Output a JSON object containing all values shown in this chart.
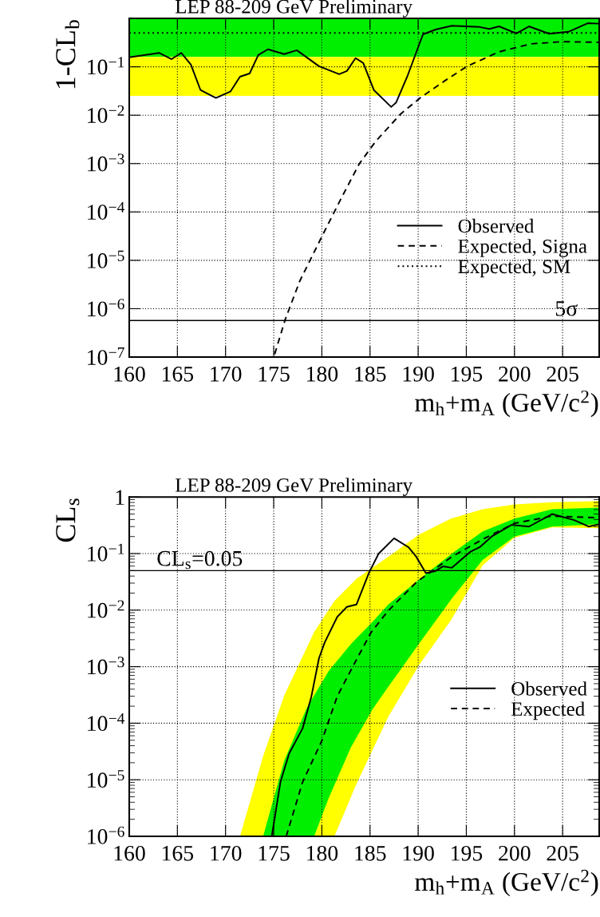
{
  "chart_data": [
    {
      "type": "line",
      "title": "LEP 88-209 GeV Preliminary",
      "xlabel": "m$_{h}$+m$_{A}$ (GeV/c$^{2}$)",
      "ylabel": "1-CL$_{b}$",
      "log": "y",
      "xlim": [
        160,
        208.8
      ],
      "xticks": [
        160,
        165,
        170,
        175,
        180,
        185,
        190,
        195,
        200,
        205
      ],
      "ylim": [
        1e-07,
        1
      ],
      "yticks": [
        {
          "value": 1e-07,
          "label": "10$^{−7}$"
        },
        {
          "value": 1e-06,
          "label": "10$^{−6}$"
        },
        {
          "value": 1e-05,
          "label": "10$^{−5}$"
        },
        {
          "value": 0.0001,
          "label": "10$^{−4}$"
        },
        {
          "value": 0.001,
          "label": "10$^{−3}$"
        },
        {
          "value": 0.01,
          "label": "10$^{−2}$"
        },
        {
          "value": 0.1,
          "label": "10$^{−1}$"
        }
      ],
      "grid": true,
      "legend": "lower right",
      "bands": [
        {
          "axis": "y",
          "from": 0.16,
          "to": 1,
          "color": "#00ef00"
        },
        {
          "axis": "y",
          "from": 0.025,
          "to": 0.16,
          "color": "#ffff00"
        }
      ],
      "ref_lines": [
        {
          "axis": "y",
          "value": 5.7e-07,
          "label": "5σ",
          "color": "#000000"
        }
      ],
      "series": [
        {
          "name": "Observed",
          "color": "#000000",
          "line_style": "solid",
          "x": [
            160.0,
            163.1,
            164.4,
            165.4,
            166.4,
            167.4,
            169.0,
            170.5,
            171.5,
            172.5,
            173.4,
            174.4,
            176.1,
            177.4,
            179.7,
            181.8,
            182.6,
            183.5,
            184.3,
            185.4,
            187.2,
            187.7,
            188.9,
            190.5,
            191.8,
            193.5,
            196.4,
            197.4,
            198.4,
            200.2,
            201.5,
            203.6,
            205.6,
            207.6,
            208.8
          ],
          "values": [
            0.157,
            0.194,
            0.144,
            0.194,
            0.111,
            0.0331,
            0.0227,
            0.0307,
            0.0625,
            0.0727,
            0.175,
            0.23,
            0.183,
            0.22,
            0.103,
            0.0706,
            0.082,
            0.151,
            0.12,
            0.0331,
            0.0148,
            0.0181,
            0.0655,
            0.469,
            0.589,
            0.707,
            0.664,
            0.607,
            0.685,
            0.491,
            0.685,
            0.483,
            0.53,
            0.796,
            0.78
          ]
        },
        {
          "name": "Expected, Signa",
          "color": "#000000",
          "line_style": "dashed",
          "x": [
            175.1,
            176.2,
            177.7,
            180.0,
            182.0,
            183.9,
            185.6,
            188.2,
            190.2,
            192.8,
            195.1,
            198.4,
            201.7,
            204.9,
            208.8
          ],
          "values": [
            1.15e-07,
            6e-07,
            3.7e-06,
            3.1e-05,
            0.00019,
            0.001,
            0.0029,
            0.0107,
            0.0227,
            0.052,
            0.103,
            0.204,
            0.298,
            0.331,
            0.321
          ]
        },
        {
          "name": "Expected, SM",
          "color": "#000000",
          "line_style": "dotted",
          "x": [
            160,
            208.8
          ],
          "values": [
            0.5,
            0.5
          ]
        }
      ]
    },
    {
      "type": "line",
      "title": "LEP 88-209 GeV Preliminary",
      "xlabel": "m$_{h}$+m$_{A}$ (GeV/c$^{2}$)",
      "ylabel": "CL$_{s}$",
      "log": "y",
      "xlim": [
        160,
        208.8
      ],
      "xticks": [
        160,
        165,
        170,
        175,
        180,
        185,
        190,
        195,
        200,
        205
      ],
      "ylim": [
        1e-06,
        1
      ],
      "yticks": [
        {
          "value": 1e-06,
          "label": "10$^{−6}$"
        },
        {
          "value": 1e-05,
          "label": "10$^{−5}$"
        },
        {
          "value": 0.0001,
          "label": "10$^{−4}$"
        },
        {
          "value": 0.001,
          "label": "10$^{−3}$"
        },
        {
          "value": 0.01,
          "label": "10$^{−2}$"
        },
        {
          "value": 0.1,
          "label": "10$^{−1}$"
        },
        1
      ],
      "grid": true,
      "legend": "right",
      "ref_lines": [
        {
          "axis": "y",
          "value": 0.05,
          "label": "CL$_{s}$=0.05",
          "color": "#000000"
        }
      ],
      "series": [
        {
          "color": "#ffff00",
          "x": [
            171.5,
            173.9,
            176.1,
            179.2,
            181.3,
            183.6,
            186.9,
            190.1,
            193.4,
            196.7,
            200.0,
            203.9,
            208.8
          ],
          "values": [
            null,
            null,
            null,
            null,
            null,
            null,
            null,
            null,
            null,
            null,
            null,
            null,
            null
          ],
          "upper": [
            1e-06,
            2.6e-05,
            0.00031,
            0.0041,
            0.0145,
            0.036,
            0.088,
            0.217,
            0.415,
            0.61,
            0.74,
            0.81,
            0.85
          ],
          "lower": [
            1e-06,
            1e-06,
            1e-06,
            1e-06,
            1e-06,
            8.5e-06,
            0.00013,
            0.00107,
            0.0066,
            0.062,
            0.19,
            0.29,
            0.28
          ]
        },
        {
          "color": "#00ef00",
          "x": [
            173.9,
            176.1,
            178.4,
            179.2,
            180.7,
            183.0,
            185.3,
            186.9,
            190.2,
            193.5,
            196.7,
            200.0,
            203.9,
            208.8
          ],
          "values": [
            null,
            null,
            null,
            null,
            null,
            null,
            null,
            null,
            null,
            null,
            null,
            null,
            null,
            null
          ],
          "upper": [
            1e-06,
            2.2e-05,
            0.00018,
            0.00031,
            0.00083,
            0.0025,
            0.0063,
            0.0126,
            0.036,
            0.1,
            0.247,
            0.415,
            0.61,
            0.65
          ],
          "lower": [
            1e-06,
            1e-06,
            1e-06,
            1e-06,
            4.7e-06,
            3.7e-05,
            0.00018,
            0.00044,
            0.0027,
            0.016,
            0.077,
            0.2,
            0.3,
            0.33
          ]
        },
        {
          "name": "Observed",
          "color": "#000000",
          "line_style": "solid",
          "x": [
            174.8,
            175.7,
            176.6,
            178.0,
            178.9,
            179.7,
            180.3,
            181.6,
            182.6,
            183.6,
            184.9,
            185.9,
            187.5,
            189.0,
            189.8,
            190.8,
            191.8,
            192.6,
            193.5,
            195.4,
            196.4,
            197.7,
            199.7,
            201.5,
            203.9,
            206.2,
            207.7,
            208.8
          ],
          "values": [
            1e-06,
            9.1e-06,
            2.9e-05,
            8.1e-05,
            0.00029,
            0.0014,
            0.0027,
            0.0076,
            0.0114,
            0.0126,
            0.046,
            0.1,
            0.186,
            0.129,
            0.088,
            0.045,
            0.049,
            0.0596,
            0.056,
            0.107,
            0.13,
            0.204,
            0.321,
            0.3,
            0.5,
            0.39,
            0.3,
            0.33
          ]
        },
        {
          "name": "Expected",
          "color": "#000000",
          "line_style": "dashed",
          "x": [
            176.3,
            178.0,
            180.0,
            181.6,
            183.3,
            185.1,
            186.9,
            189.8,
            193.5,
            196.7,
            200.0,
            203.9,
            208.8
          ],
          "values": [
            1e-06,
            9.1e-06,
            4.9e-05,
            0.0003,
            0.00107,
            0.004,
            0.0098,
            0.031,
            0.088,
            0.179,
            0.342,
            0.46,
            0.43
          ]
        }
      ]
    }
  ]
}
